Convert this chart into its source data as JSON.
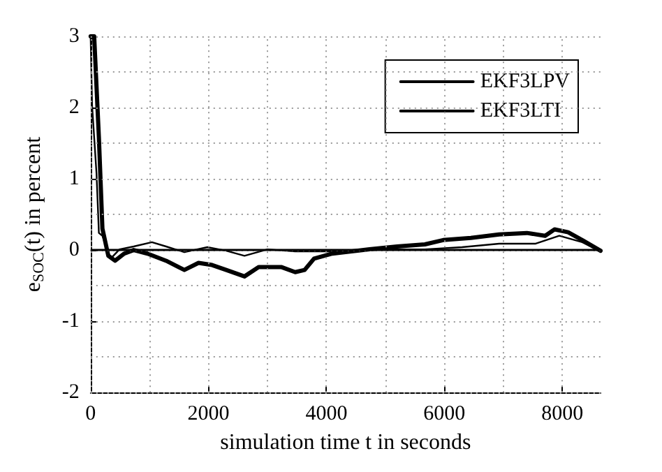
{
  "chart_data": {
    "type": "line",
    "xlabel": "simulation time t in seconds",
    "ylabel": "e$_{SOC}$(t) in percent",
    "xlim": [
      0,
      8650
    ],
    "ylim": [
      -2,
      3
    ],
    "xticks": [
      0,
      {
        "value": 1000,
        "label": null
      },
      2000,
      {
        "value": 3000,
        "label": null
      },
      4000,
      {
        "value": 5000,
        "label": null
      },
      6000,
      {
        "value": 7000,
        "label": null
      },
      8000
    ],
    "yticks": [
      -2,
      {
        "value": -1.5,
        "label": null
      },
      -1,
      {
        "value": -0.5,
        "label": null
      },
      0,
      {
        "value": 0.5,
        "label": null
      },
      1,
      {
        "value": 1.5,
        "label": null
      },
      2,
      {
        "value": 2.5,
        "label": null
      },
      3
    ],
    "grid": true,
    "legend": "top right",
    "marker": "none",
    "line_style": "solid",
    "ref_lines": [
      {
        "axis": "y",
        "value": 0,
        "label": null,
        "color": "#000000"
      }
    ],
    "series": [
      {
        "name": "EKF3LPV",
        "color": "#000000",
        "x": [
          0,
          60,
          140,
          200,
          300,
          415,
          570,
          730,
          965,
          1280,
          1590,
          1830,
          2060,
          2300,
          2610,
          2850,
          3240,
          3470,
          3630,
          3790,
          4100,
          4730,
          5200,
          5670,
          5980,
          6450,
          6930,
          7400,
          7710,
          7870,
          8100,
          8340,
          8650
        ],
        "values": [
          3,
          3,
          1.58,
          0.3,
          -0.08,
          -0.15,
          -0.05,
          0.0,
          -0.05,
          -0.15,
          -0.28,
          -0.18,
          -0.21,
          -0.28,
          -0.37,
          -0.24,
          -0.24,
          -0.31,
          -0.28,
          -0.12,
          -0.05,
          0.01,
          0.05,
          0.08,
          0.14,
          0.17,
          0.22,
          0.24,
          0.2,
          0.29,
          0.25,
          0.14,
          -0.01
        ]
      },
      {
        "name": "EKF3LTI",
        "color": "#000000",
        "x": [
          0,
          25,
          100,
          140,
          200,
          340,
          490,
          730,
          1040,
          1280,
          1590,
          1980,
          2300,
          2610,
          3000,
          3470,
          4100,
          4730,
          5670,
          6300,
          6930,
          7550,
          7950,
          8340,
          8650
        ],
        "values": [
          3,
          2.03,
          1.07,
          0.24,
          0.2,
          -0.12,
          0.01,
          0.05,
          0.11,
          0.05,
          -0.03,
          0.04,
          -0.01,
          -0.08,
          0.01,
          -0.02,
          -0.02,
          0.01,
          0.01,
          0.04,
          0.09,
          0.09,
          0.2,
          0.11,
          -0.02
        ]
      }
    ]
  }
}
